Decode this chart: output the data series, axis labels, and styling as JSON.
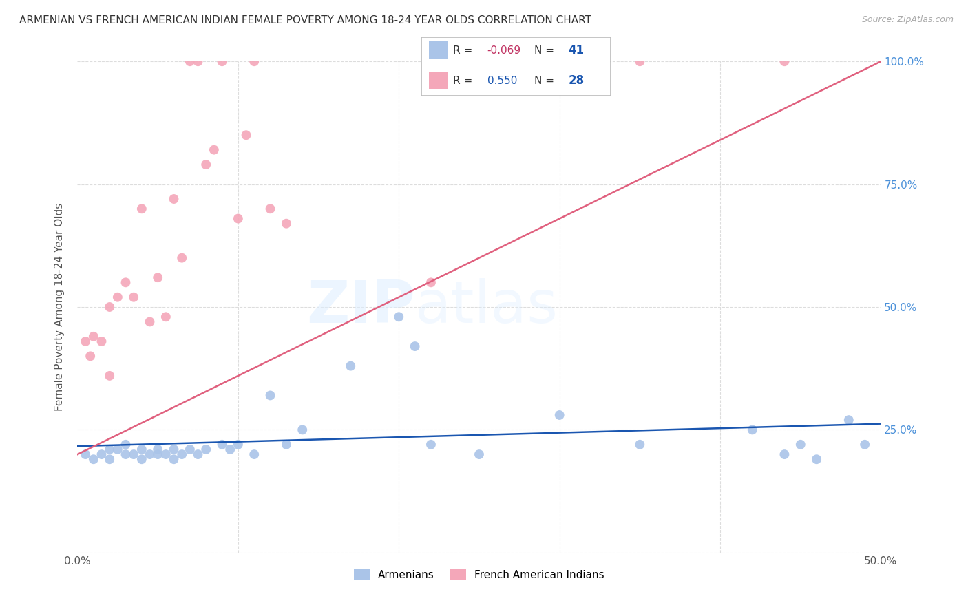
{
  "title": "ARMENIAN VS FRENCH AMERICAN INDIAN FEMALE POVERTY AMONG 18-24 YEAR OLDS CORRELATION CHART",
  "source": "Source: ZipAtlas.com",
  "ylabel": "Female Poverty Among 18-24 Year Olds",
  "xlim": [
    0.0,
    0.5
  ],
  "ylim": [
    0.0,
    1.0
  ],
  "xticks": [
    0.0,
    0.1,
    0.2,
    0.3,
    0.4,
    0.5
  ],
  "xticklabels": [
    "0.0%",
    "",
    "",
    "",
    "",
    "50.0%"
  ],
  "yticks": [
    0.0,
    0.25,
    0.5,
    0.75,
    1.0
  ],
  "watermark": "ZIPatlas",
  "armenian_color": "#aac4e8",
  "french_color": "#f4a7b9",
  "armenian_line_color": "#1a56b0",
  "french_line_color": "#e0607e",
  "armenian_x": [
    0.005,
    0.01,
    0.015,
    0.02,
    0.02,
    0.025,
    0.03,
    0.03,
    0.035,
    0.04,
    0.04,
    0.045,
    0.05,
    0.05,
    0.055,
    0.06,
    0.06,
    0.065,
    0.07,
    0.075,
    0.08,
    0.09,
    0.095,
    0.1,
    0.11,
    0.12,
    0.13,
    0.14,
    0.17,
    0.2,
    0.21,
    0.22,
    0.25,
    0.3,
    0.35,
    0.42,
    0.44,
    0.45,
    0.46,
    0.48,
    0.49
  ],
  "armenian_y": [
    0.2,
    0.19,
    0.2,
    0.19,
    0.21,
    0.21,
    0.2,
    0.22,
    0.2,
    0.19,
    0.21,
    0.2,
    0.2,
    0.21,
    0.2,
    0.19,
    0.21,
    0.2,
    0.21,
    0.2,
    0.21,
    0.22,
    0.21,
    0.22,
    0.2,
    0.32,
    0.22,
    0.25,
    0.38,
    0.48,
    0.42,
    0.22,
    0.2,
    0.28,
    0.22,
    0.25,
    0.2,
    0.22,
    0.19,
    0.27,
    0.22
  ],
  "french_x": [
    0.005,
    0.008,
    0.01,
    0.015,
    0.02,
    0.02,
    0.025,
    0.03,
    0.035,
    0.04,
    0.045,
    0.05,
    0.055,
    0.06,
    0.065,
    0.07,
    0.075,
    0.08,
    0.085,
    0.09,
    0.1,
    0.105,
    0.11,
    0.12,
    0.13,
    0.22,
    0.35,
    0.44
  ],
  "french_y": [
    0.43,
    0.4,
    0.44,
    0.43,
    0.5,
    0.36,
    0.52,
    0.55,
    0.52,
    0.7,
    0.47,
    0.56,
    0.48,
    0.72,
    0.6,
    1.0,
    1.0,
    0.79,
    0.82,
    1.0,
    0.68,
    0.85,
    1.0,
    0.7,
    0.67,
    0.55,
    1.0,
    1.0
  ]
}
